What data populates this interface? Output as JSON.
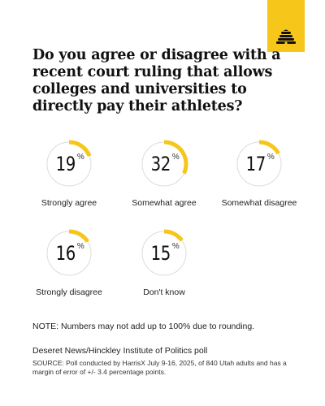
{
  "title": "Do you agree or disagree with a recent court ruling that allows colleges and universities to directly pay their athletes?",
  "percent_symbol": "%",
  "colors": {
    "accent": "#f6c61a",
    "ring": "#dcdcdc",
    "text": "#111111"
  },
  "logo": {
    "icon": "deseret-beehive-icon"
  },
  "chart_data": {
    "type": "pie",
    "title": "Do you agree or disagree with a recent court ruling that allows colleges and universities to directly pay their athletes?",
    "categories": [
      "Strongly agree",
      "Somewhat agree",
      "Somewhat disagree",
      "Strongly disagree",
      "Don't know"
    ],
    "values": [
      19,
      32,
      17,
      16,
      15
    ],
    "unit": "%"
  },
  "note": "NOTE: Numbers may not add up to 100% due to rounding.",
  "credit": "Deseret News/Hinckley Institute of Politics poll",
  "source": "SOURCE: Poll conducted by HarrisX July 9-16, 2025, of 840 Utah adults and has a margin of error of +/- 3.4 percentage points."
}
